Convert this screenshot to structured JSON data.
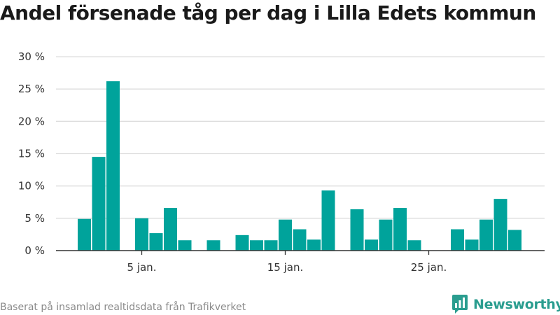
{
  "title": "Andel försenade tåg per dag i Lilla Edets kommun",
  "footer": {
    "source": "Baserat på insamlad realtidsdata från Trafikverket",
    "brand_name": "Newsworthy",
    "brand_icon": "newsworthy-logo-icon"
  },
  "colors": {
    "bar": "#00a39b",
    "grid": "#dddddd",
    "axis": "#333333",
    "brand": "#2a9d8f"
  },
  "chart_data": {
    "type": "bar",
    "title": "Andel försenade tåg per dag i Lilla Edets kommun",
    "xlabel": "",
    "ylabel": "",
    "ylim": [
      0,
      30
    ],
    "y_ticks": [
      0,
      5,
      10,
      15,
      20,
      25,
      30
    ],
    "y_tick_labels": [
      "0 %",
      "5 %",
      "10 %",
      "15 %",
      "20 %",
      "25 %",
      "30 %"
    ],
    "x_tick_days": [
      5,
      15,
      25
    ],
    "x_tick_labels": [
      "5 jan.",
      "15 jan.",
      "25 jan."
    ],
    "grid": true,
    "categories": [
      "1 jan.",
      "2 jan.",
      "3 jan.",
      "4 jan.",
      "5 jan.",
      "6 jan.",
      "7 jan.",
      "8 jan.",
      "9 jan.",
      "10 jan.",
      "11 jan.",
      "12 jan.",
      "13 jan.",
      "14 jan.",
      "15 jan.",
      "16 jan.",
      "17 jan.",
      "18 jan.",
      "19 jan.",
      "20 jan.",
      "21 jan.",
      "22 jan.",
      "23 jan.",
      "24 jan.",
      "25 jan.",
      "26 jan.",
      "27 jan.",
      "28 jan.",
      "29 jan.",
      "30 jan.",
      "31 jan."
    ],
    "values": [
      4.9,
      14.5,
      26.2,
      0,
      5.0,
      2.7,
      6.6,
      1.6,
      0,
      1.6,
      0,
      2.4,
      1.6,
      1.6,
      4.8,
      3.3,
      1.7,
      9.3,
      0,
      6.4,
      1.7,
      4.8,
      6.6,
      1.6,
      0,
      0,
      3.3,
      1.7,
      4.8,
      8.0,
      3.2
    ]
  }
}
